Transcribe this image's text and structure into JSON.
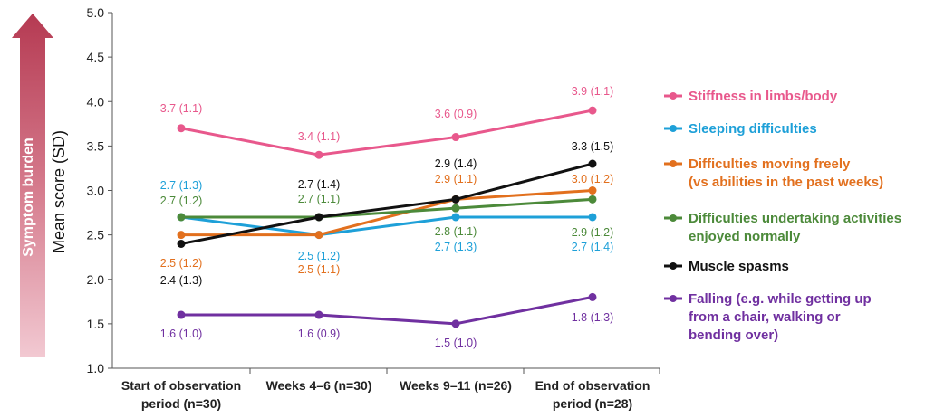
{
  "chart_data": {
    "type": "line",
    "ylabel": "Mean score (SD)",
    "burden_label": "Symptom burden",
    "ylim": [
      1.0,
      5.0
    ],
    "yticks": [
      "1.0",
      "1.5",
      "2.0",
      "2.5",
      "3.0",
      "3.5",
      "4.0",
      "4.5",
      "5.0"
    ],
    "categories": [
      [
        "Start of observation",
        "period (n=30)"
      ],
      [
        "Weeks 4–6 (n=30)"
      ],
      [
        "Weeks 9–11 (n=26)"
      ],
      [
        "End of observation",
        "period (n=28)"
      ]
    ],
    "series": [
      {
        "name": "Stiffness in limbs/body",
        "legend_lines": [
          "Stiffness in limbs/body"
        ],
        "color": "#e8588c",
        "values": [
          3.7,
          3.4,
          3.6,
          3.9
        ],
        "labels": [
          "3.7 (1.1)",
          "3.4 (1.1)",
          "3.6 (0.9)",
          "3.9 (1.1)"
        ]
      },
      {
        "name": "Sleeping difficulties",
        "legend_lines": [
          "Sleeping difficulties"
        ],
        "color": "#1ea0d8",
        "values": [
          2.7,
          2.5,
          2.7,
          2.7
        ],
        "labels": [
          "2.7 (1.3)",
          "2.5 (1.2)",
          "2.7 (1.3)",
          "2.7 (1.4)"
        ]
      },
      {
        "name": "Difficulties moving freely (vs abilities in the past weeks)",
        "legend_lines": [
          "Difficulties moving freely",
          "(vs abilities in the past weeks)"
        ],
        "color": "#e2701e",
        "values": [
          2.5,
          2.5,
          2.9,
          3.0
        ],
        "labels": [
          "2.5 (1.2)",
          "2.5 (1.1)",
          "2.9 (1.1)",
          "3.0 (1.2)"
        ]
      },
      {
        "name": "Difficulties undertaking activities enjoyed normally",
        "legend_lines": [
          "Difficulties undertaking activities",
          "enjoyed normally"
        ],
        "color": "#4c8a3a",
        "values": [
          2.7,
          2.7,
          2.8,
          2.9
        ],
        "labels": [
          "2.7 (1.2)",
          "2.7 (1.1)",
          "2.8 (1.1)",
          "2.9 (1.2)"
        ]
      },
      {
        "name": "Muscle spasms",
        "legend_lines": [
          "Muscle spasms"
        ],
        "color": "#111111",
        "values": [
          2.4,
          2.7,
          2.9,
          3.3
        ],
        "labels": [
          "2.4 (1.3)",
          "2.7 (1.4)",
          "2.9 (1.4)",
          "3.3 (1.5)"
        ]
      },
      {
        "name": "Falling (e.g. while getting up from a chair, walking or bending over)",
        "legend_lines": [
          "Falling (e.g. while getting up",
          "from a chair, walking or",
          "bending over)"
        ],
        "color": "#7030a0",
        "values": [
          1.6,
          1.6,
          1.5,
          1.8
        ],
        "labels": [
          "1.6 (1.0)",
          "1.6 (0.9)",
          "1.5 (1.0)",
          "1.8 (1.3)"
        ]
      }
    ]
  }
}
